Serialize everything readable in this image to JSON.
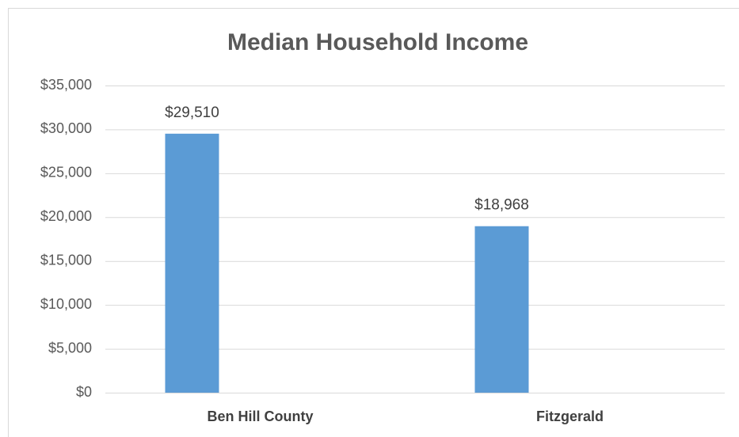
{
  "chart_data": {
    "type": "bar",
    "title": "Median Household Income",
    "categories": [
      "Ben Hill County",
      "Fitzgerald"
    ],
    "values": [
      29510,
      18968
    ],
    "value_labels": [
      "$29,510",
      "$18,968"
    ],
    "color": "#5b9bd5",
    "ylim": [
      0,
      35000
    ],
    "yticks": [
      {
        "value": 0,
        "label": "$0"
      },
      {
        "value": 5000,
        "label": "$5,000"
      },
      {
        "value": 10000,
        "label": "$10,000"
      },
      {
        "value": 15000,
        "label": "$15,000"
      },
      {
        "value": 20000,
        "label": "$20,000"
      },
      {
        "value": 25000,
        "label": "$25,000"
      },
      {
        "value": 30000,
        "label": "$30,000"
      },
      {
        "value": 35000,
        "label": "$35,000"
      }
    ],
    "grid": true
  }
}
